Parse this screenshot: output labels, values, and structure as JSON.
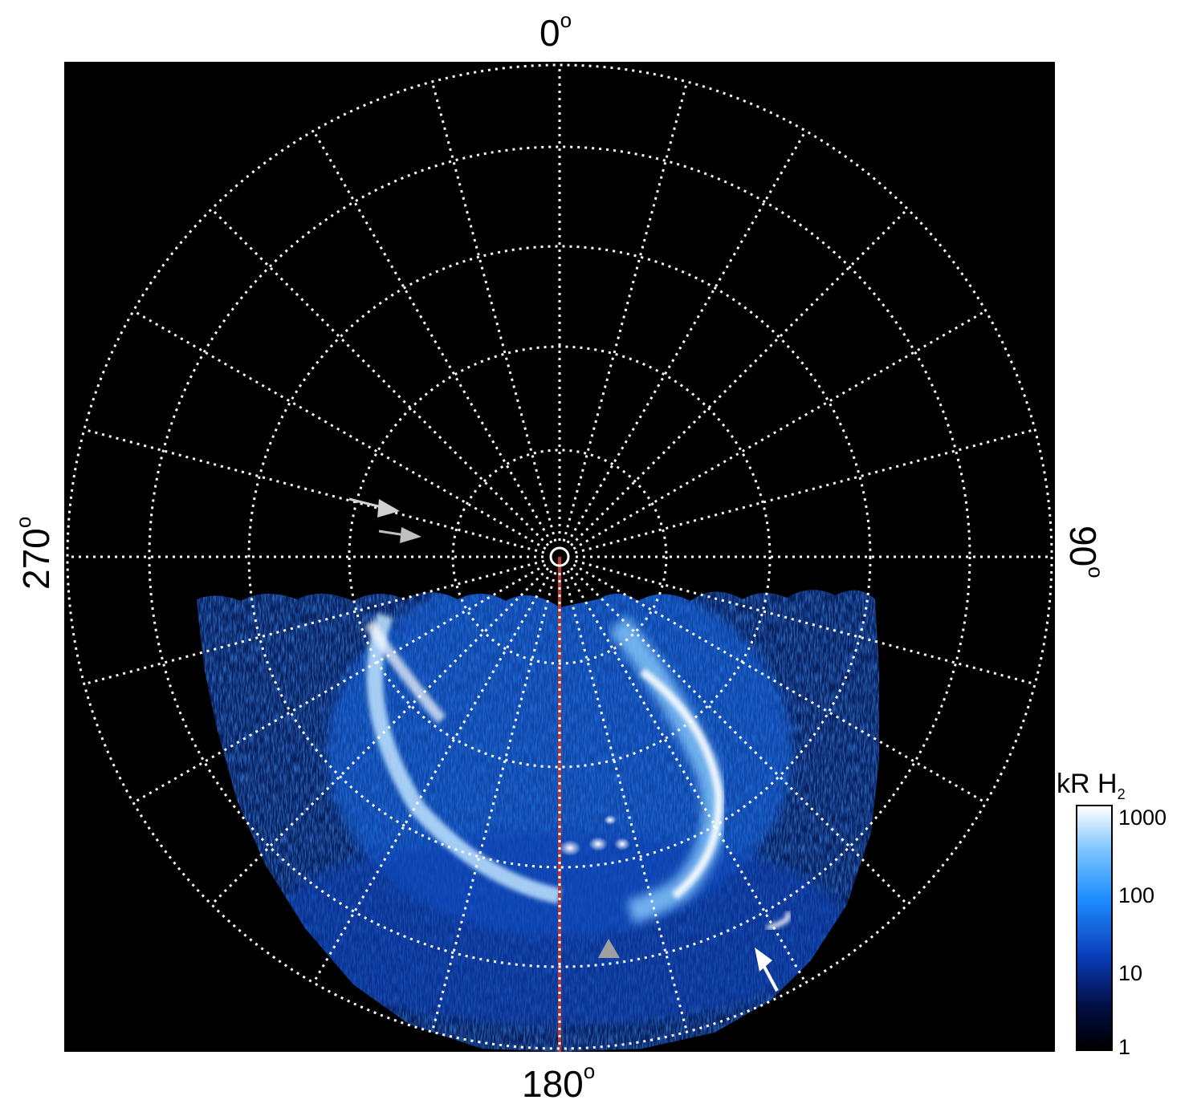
{
  "labels": {
    "top": "0",
    "bottom": "180",
    "left": "270",
    "right": "90",
    "degree_symbol": "o"
  },
  "colorbar": {
    "title_main": "kR H",
    "title_sub": "2",
    "ticks": [
      "1000",
      "100",
      "10",
      "1"
    ],
    "scale": "log",
    "colors": [
      "#ffffff",
      "#7cc4ff",
      "#1e8eff",
      "#0a3cb8",
      "#010f45",
      "#000000"
    ]
  },
  "image": {
    "background": "#000000",
    "grid_color": "#ffffff",
    "meridian_color": "#c0392b",
    "aurora_colors": [
      "#0b3dd6",
      "#2a8cff",
      "#9fd6ff",
      "#ffffff"
    ],
    "arrows": [
      "white-arrow",
      "gray-arrow",
      "gray-arrowhead",
      "gray-arrowhead"
    ]
  }
}
